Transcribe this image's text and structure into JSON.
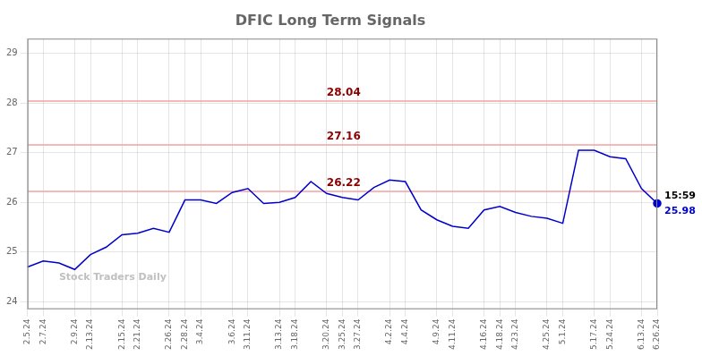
{
  "chart_data": {
    "type": "line",
    "title": "DFIC Long Term Signals",
    "categories": [
      "2.5.24",
      "2.7.24",
      null,
      "2.9.24",
      "2.13.24",
      null,
      "2.15.24",
      "2.21.24",
      null,
      "2.26.24",
      "2.28.24",
      "3.4.24",
      null,
      "3.6.24",
      "3.11.24",
      null,
      "3.13.24",
      "3.18.24",
      null,
      "3.20.24",
      "3.25.24",
      "3.27.24",
      null,
      "4.2.24",
      "4.4.24",
      null,
      "4.9.24",
      "4.11.24",
      null,
      "4.16.24",
      "4.18.24",
      "4.23.24",
      null,
      "4.25.24",
      "5.1.24",
      null,
      "5.17.24",
      "5.24.24",
      null,
      "6.13.24",
      "6.26.24"
    ],
    "values": [
      24.7,
      24.82,
      24.78,
      24.65,
      24.95,
      25.1,
      25.35,
      25.38,
      25.48,
      25.4,
      26.05,
      26.05,
      25.98,
      26.2,
      26.28,
      25.98,
      26.0,
      26.1,
      26.42,
      26.18,
      26.1,
      26.05,
      26.3,
      26.45,
      26.42,
      25.85,
      25.65,
      25.52,
      25.48,
      25.85,
      25.92,
      25.8,
      25.72,
      25.68,
      25.58,
      27.05,
      27.05,
      26.92,
      26.88,
      26.28,
      25.98
    ],
    "color": "#0000cc",
    "hlines": {
      "color": "#f5a0a0",
      "label_color": "#8b0000",
      "label_at": "3.20.24",
      "lines": [
        {
          "y": 28.04,
          "label": "28.04"
        },
        {
          "y": 27.16,
          "label": "27.16"
        },
        {
          "y": 26.22,
          "label": "26.22"
        }
      ]
    },
    "last_point": {
      "time_label": "15:59",
      "price_label": "25.98",
      "color": "#0000cc"
    },
    "watermark": "Stock Traders Daily",
    "ylim": [
      23.85,
      29.3
    ],
    "yticks": [
      24,
      25,
      26,
      27,
      28,
      29
    ],
    "grid": true
  }
}
